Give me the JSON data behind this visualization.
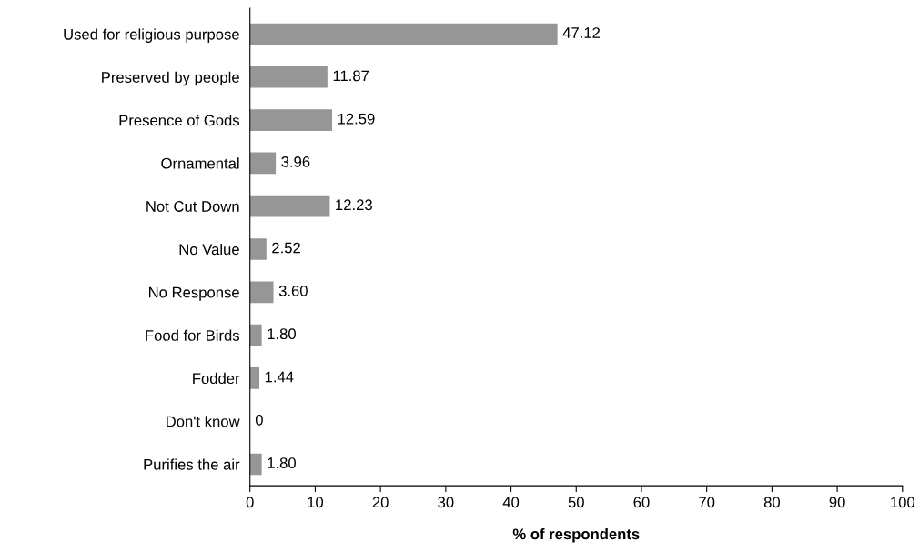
{
  "chart_data": {
    "type": "bar",
    "orientation": "horizontal",
    "xlabel": "% of respondents",
    "categories": [
      "Used for religious purpose",
      "Preserved by people",
      "Presence of Gods",
      "Ornamental",
      "Not Cut Down",
      "No Value",
      "No Response",
      "Food for Birds",
      "Fodder",
      "Don't know",
      "Purifies the air"
    ],
    "values": [
      47.12,
      11.87,
      12.59,
      3.96,
      12.23,
      2.52,
      3.6,
      1.8,
      1.44,
      0,
      1.8
    ],
    "value_labels": [
      "47.12",
      "11.87",
      "12.59",
      "3.96",
      "12.23",
      "2.52",
      "3.60",
      "1.80",
      "1.44",
      "0",
      "1.80"
    ],
    "color": "#969696",
    "xlim": [
      0,
      100
    ],
    "xticks": [
      0,
      10,
      20,
      30,
      40,
      50,
      60,
      70,
      80,
      90,
      100
    ],
    "grid": false,
    "legend": false
  }
}
